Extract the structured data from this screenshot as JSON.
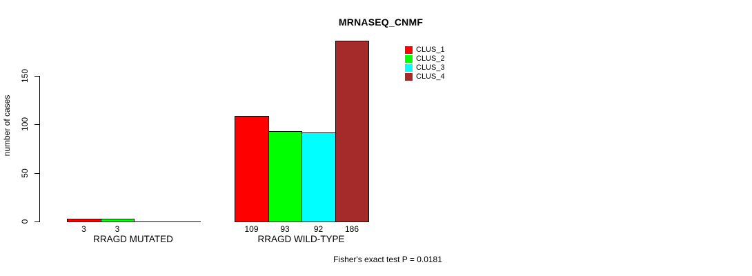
{
  "title": "MRNASEQ_CNMF",
  "y_axis": {
    "label": "number of cases",
    "ticks": [
      "0",
      "50",
      "100",
      "150"
    ]
  },
  "footer_annotation": "Fisher's exact test P = 0.0181",
  "legend": {
    "items": [
      {
        "label": "CLUS_1",
        "color": "#ff0000"
      },
      {
        "label": "CLUS_2",
        "color": "#00ff00"
      },
      {
        "label": "CLUS_3",
        "color": "#00ffff"
      },
      {
        "label": "CLUS_4",
        "color": "#a52a2a"
      }
    ]
  },
  "chart_data": {
    "type": "bar",
    "title": "MRNASEQ_CNMF",
    "xlabel": "",
    "ylabel": "number of cases",
    "categories": [
      "RRAGD MUTATED",
      "RRAGD WILD-TYPE"
    ],
    "series": [
      {
        "name": "CLUS_1",
        "color": "#ff0000",
        "values": [
          3,
          109
        ]
      },
      {
        "name": "CLUS_2",
        "color": "#00ff00",
        "values": [
          3,
          93
        ]
      },
      {
        "name": "CLUS_3",
        "color": "#00ffff",
        "values": [
          0,
          92
        ]
      },
      {
        "name": "CLUS_4",
        "color": "#a52a2a",
        "values": [
          0,
          186
        ]
      }
    ],
    "bar_value_labels": [
      [
        "3",
        "3",
        null,
        null
      ],
      [
        "109",
        "93",
        "92",
        "186"
      ]
    ],
    "yticks": [
      0,
      50,
      100,
      150
    ],
    "ylim": [
      0,
      186
    ],
    "grid": false,
    "legend_position": "top-right",
    "bar_border_color": "#000000",
    "annotation": "Fisher's exact test P = 0.0181"
  }
}
